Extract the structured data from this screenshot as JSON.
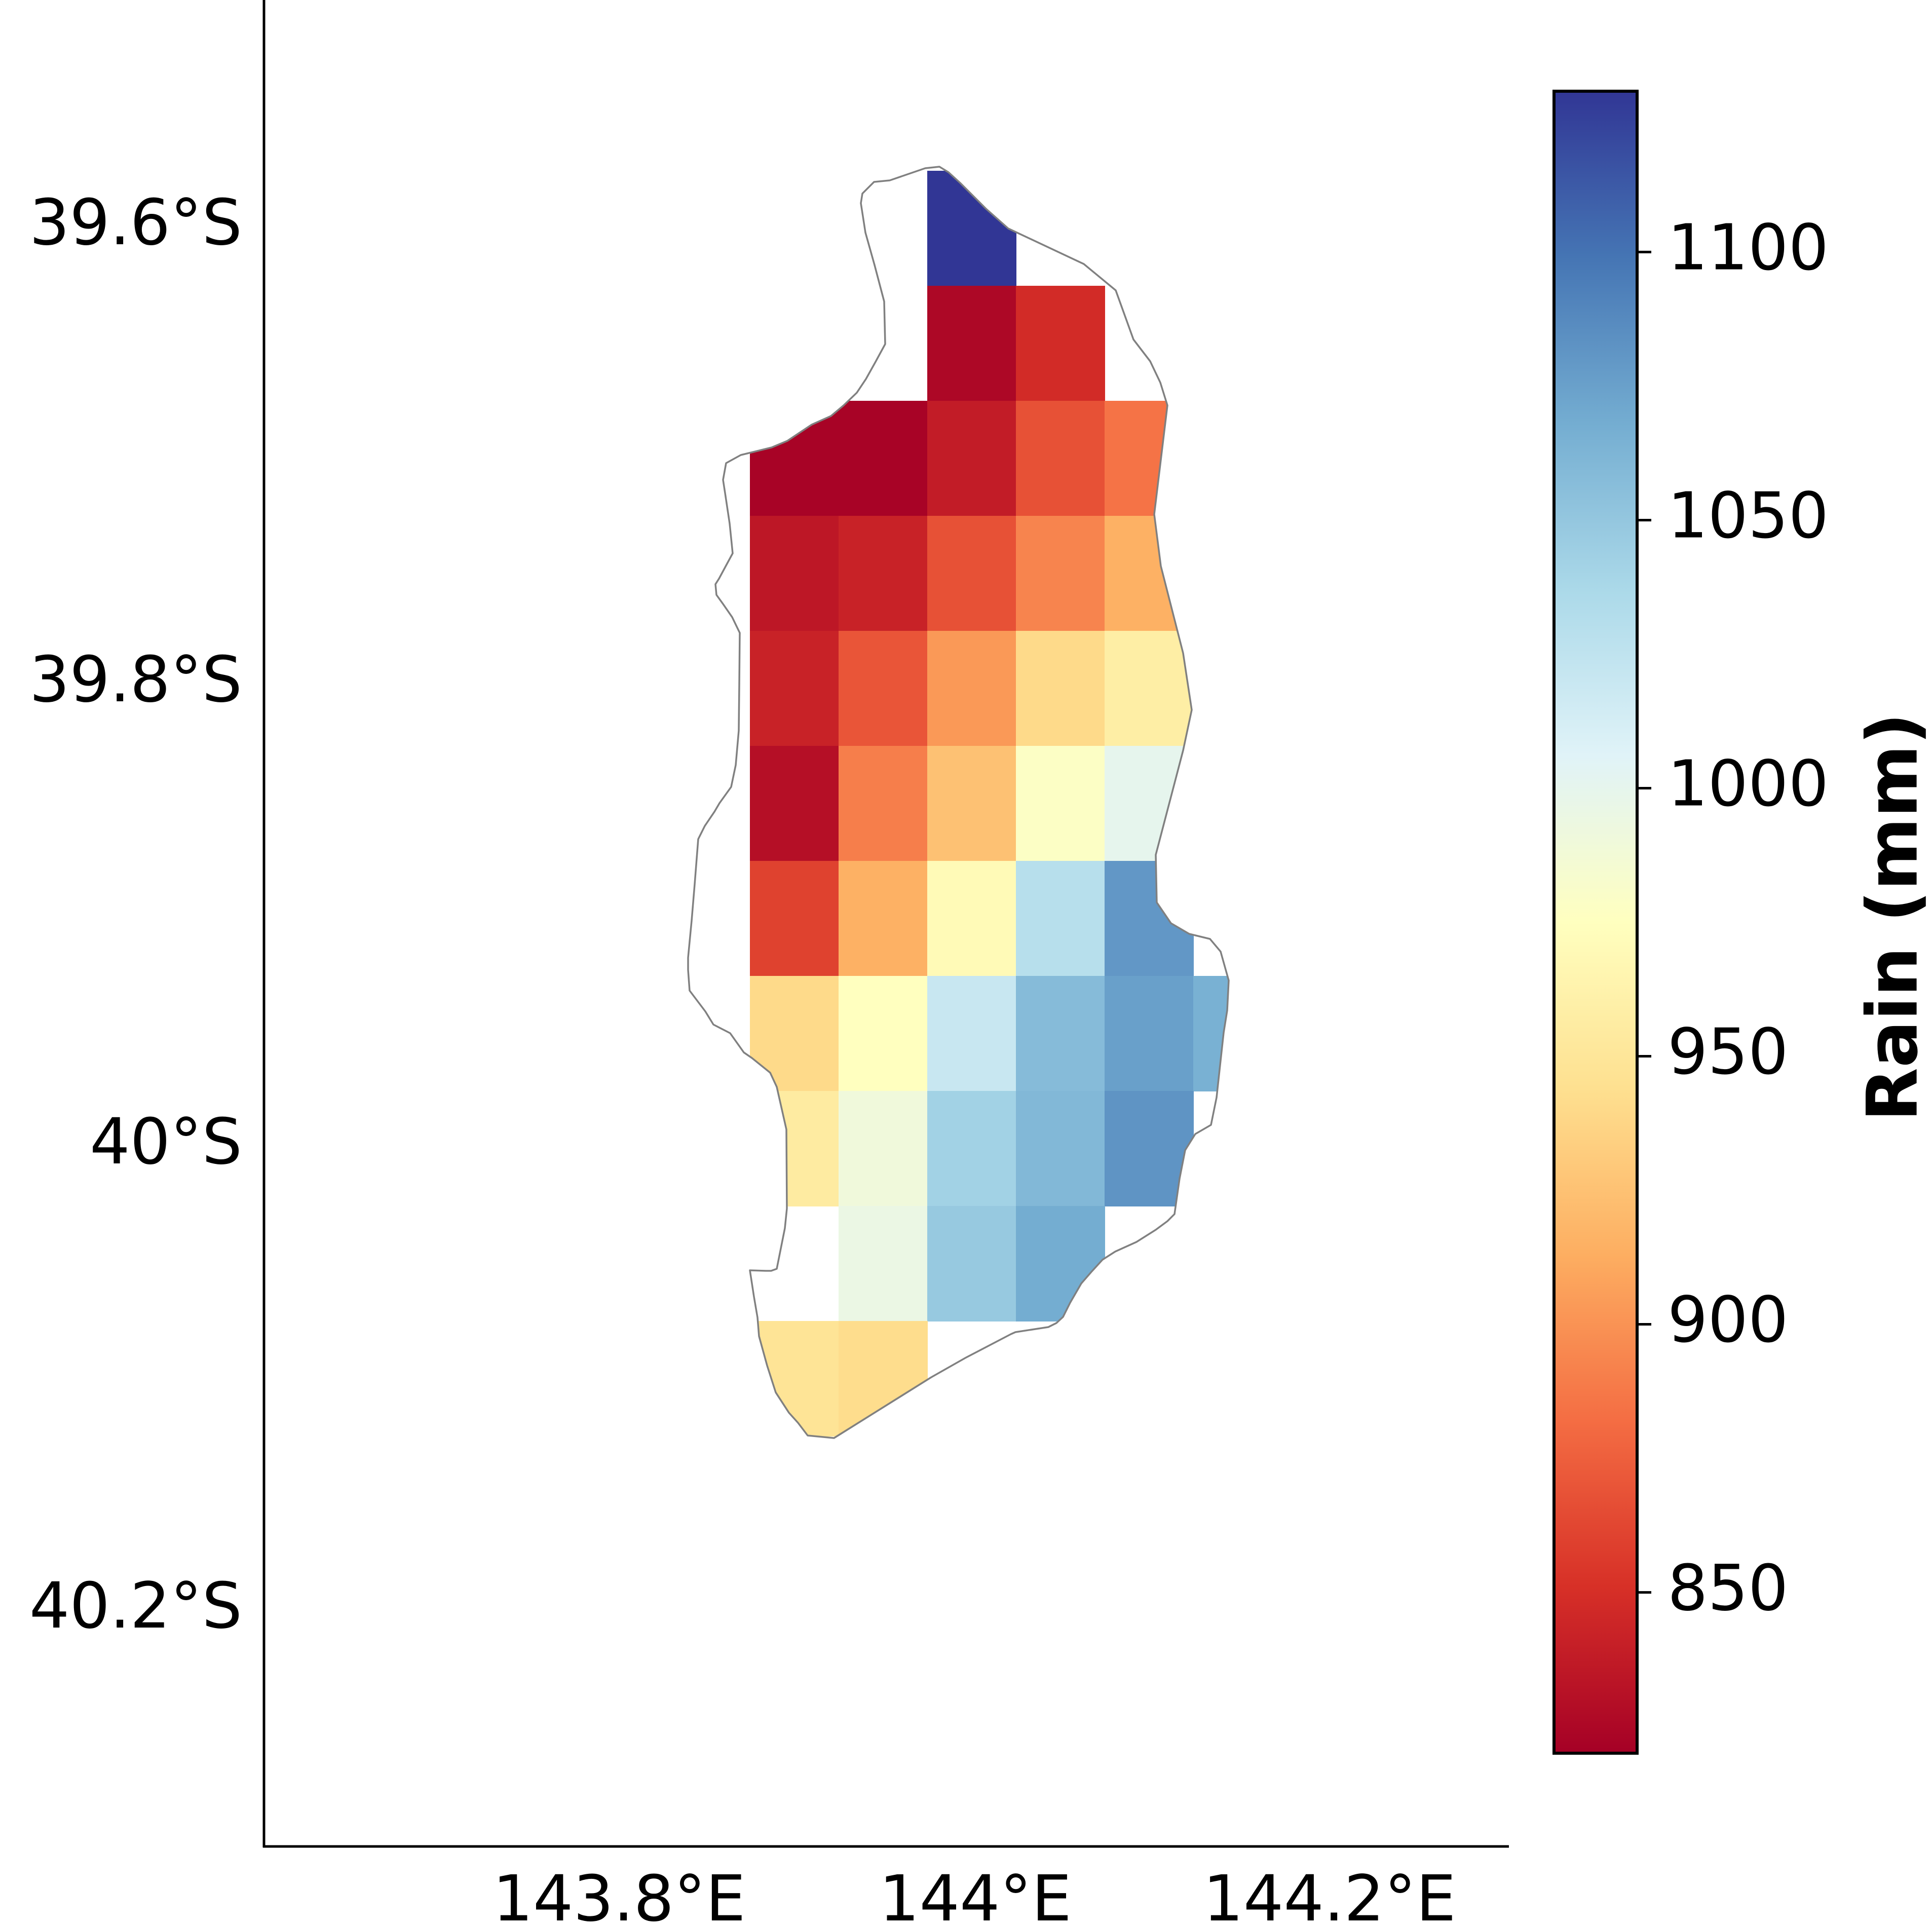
{
  "map": {
    "lat_ticks": [
      "39.6°S",
      "39.8°S",
      "40°S",
      "40.2°S"
    ],
    "lon_ticks": [
      "143.8°E",
      "144°E",
      "144.2°E"
    ],
    "coastline_color": "#808080"
  },
  "colorbar": {
    "label": "Rain (mm)",
    "ticks": [
      "850",
      "900",
      "950",
      "1000",
      "1050",
      "1100"
    ],
    "range": [
      820,
      1130
    ],
    "colormap": "RdYlBu",
    "colors": [
      "#a50026",
      "#d73027",
      "#f46d43",
      "#fdae61",
      "#fee090",
      "#ffffbf",
      "#e0f3f8",
      "#abd9e9",
      "#74add1",
      "#4575b4",
      "#313695"
    ]
  },
  "chart_data": {
    "type": "heatmap",
    "title": "",
    "colorbar_label": "Rain (mm)",
    "value_range": [
      820,
      1130
    ],
    "lon_range": [
      143.6,
      144.3
    ],
    "lat_range": [
      -40.3,
      -39.5
    ],
    "rows": [
      {
        "lat": "39.60°S",
        "cells": [
          null,
          null,
          1130,
          null,
          null,
          null
        ]
      },
      {
        "lat": "39.65°S",
        "cells": [
          null,
          null,
          825,
          848,
          null,
          null
        ]
      },
      {
        "lat": "39.70°S",
        "cells": [
          822,
          822,
          838,
          868,
          885,
          null
        ]
      },
      {
        "lat": "39.75°S",
        "cells": [
          835,
          842,
          868,
          893,
          915,
          null
        ]
      },
      {
        "lat": "39.80°S",
        "cells": [
          842,
          870,
          903,
          940,
          958,
          null
        ]
      },
      {
        "lat": "39.85°S",
        "cells": [
          830,
          890,
          925,
          978,
          1000,
          null
        ]
      },
      {
        "lat": "39.90°S",
        "cells": [
          860,
          915,
          970,
          1030,
          1080,
          null
        ]
      },
      {
        "lat": "39.95°S",
        "cells": [
          940,
          975,
          1020,
          1058,
          1075,
          1065
        ]
      },
      {
        "lat": "40.00°S",
        "cells": [
          955,
          990,
          1042,
          1060,
          1082,
          null
        ]
      },
      {
        "lat": "40.05°S",
        "cells": [
          null,
          995,
          1048,
          1068,
          null,
          null
        ]
      },
      {
        "lat": "40.10°S",
        "cells": [
          948,
          942,
          null,
          null,
          null,
          null
        ]
      }
    ],
    "lon_columns": [
      "143.90°E",
      "143.94°E",
      "143.98°E",
      "144.02°E",
      "144.06°E",
      "144.10°E"
    ]
  }
}
